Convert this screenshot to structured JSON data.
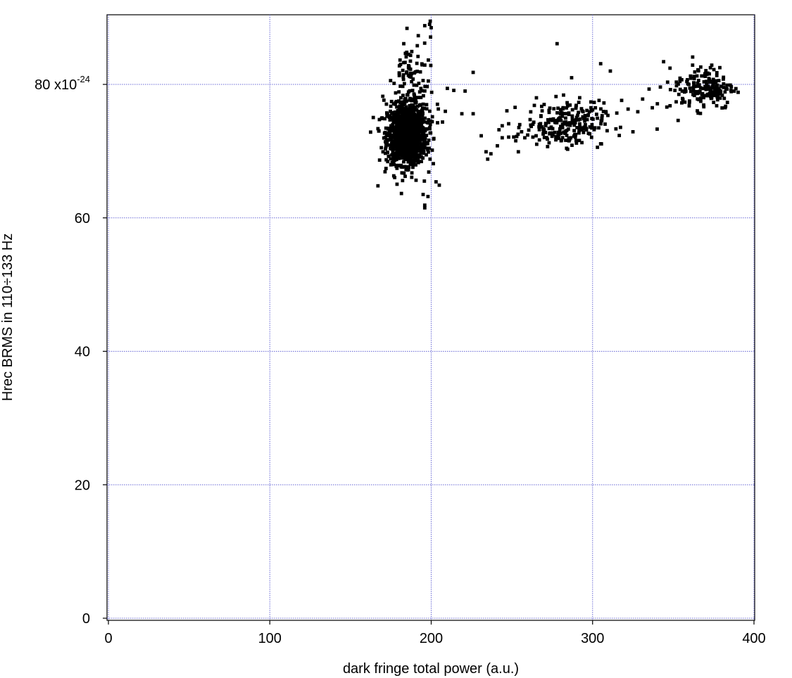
{
  "chart_data": {
    "type": "scatter",
    "xlabel": "dark fringe total power (a.u.)",
    "ylabel": "Hrec BRMS in 110÷133 Hz",
    "xlim": [
      0,
      400
    ],
    "ylim": [
      0,
      90
    ],
    "x_ticks": [
      0,
      100,
      200,
      300,
      400
    ],
    "y_ticks": [
      0,
      20,
      40,
      60,
      80
    ],
    "x_tick_labels": [
      "0",
      "100",
      "200",
      "300",
      "400"
    ],
    "y_tick_labels": [
      "0",
      "20",
      "40",
      "60",
      "80 x10"
    ],
    "y_multiplier_exponent": "-24",
    "grid": true,
    "grid_color": "#6b6bd6",
    "marker_color": "#000000",
    "marker": "square",
    "clusters": [
      {
        "x_mean": 185,
        "x_sd": 6,
        "y_mean": 72.5,
        "y_sd": 2.2,
        "n": 1200
      },
      {
        "x_mean": 188,
        "x_sd": 7,
        "y_mean": 78,
        "y_sd": 5,
        "n": 160
      },
      {
        "x_mean": 283,
        "x_sd": 12,
        "y_mean": 74,
        "y_sd": 1.6,
        "n": 220
      },
      {
        "x_mean": 370,
        "x_sd": 9,
        "y_mean": 79.5,
        "y_sd": 1.6,
        "n": 170
      }
    ],
    "points": [
      [
        167,
        64.8
      ],
      [
        172,
        67.4
      ],
      [
        195,
        63.5
      ],
      [
        198,
        63.2
      ],
      [
        196,
        61.9
      ],
      [
        196,
        61.5
      ],
      [
        203,
        65.4
      ],
      [
        205,
        64.9
      ],
      [
        196,
        88.8
      ],
      [
        199,
        89.0
      ],
      [
        200,
        88.5
      ],
      [
        185,
        88.4
      ],
      [
        192,
        87.3
      ],
      [
        183,
        86.1
      ],
      [
        210,
        79.4
      ],
      [
        214,
        79.1
      ],
      [
        221,
        79.0
      ],
      [
        226,
        81.8
      ],
      [
        219,
        75.6
      ],
      [
        226,
        75.6
      ],
      [
        231,
        72.3
      ],
      [
        234,
        69.9
      ],
      [
        235,
        68.8
      ],
      [
        237,
        69.6
      ],
      [
        241,
        70.8
      ],
      [
        242,
        73.2
      ],
      [
        244,
        73.8
      ],
      [
        244,
        72.0
      ],
      [
        248,
        74.1
      ],
      [
        248,
        72.1
      ],
      [
        253,
        72.2
      ],
      [
        254,
        69.9
      ],
      [
        256,
        72.9
      ],
      [
        258,
        72.0
      ],
      [
        262,
        73.7
      ],
      [
        265,
        72.3
      ],
      [
        267,
        74.0
      ],
      [
        270,
        73.2
      ],
      [
        272,
        71.8
      ],
      [
        275,
        74.6
      ],
      [
        278,
        86.1
      ],
      [
        287,
        81.0
      ],
      [
        292,
        78.0
      ],
      [
        301,
        77.3
      ],
      [
        304,
        77.6
      ],
      [
        305,
        83.1
      ],
      [
        305,
        71.1
      ],
      [
        311,
        82.0
      ],
      [
        315,
        75.7
      ],
      [
        318,
        77.6
      ],
      [
        322,
        76.3
      ],
      [
        325,
        72.9
      ],
      [
        328,
        75.9
      ],
      [
        331,
        77.8
      ],
      [
        335,
        79.3
      ],
      [
        337,
        76.5
      ],
      [
        340,
        73.3
      ],
      [
        342,
        79.6
      ],
      [
        344,
        83.4
      ],
      [
        348,
        76.8
      ],
      [
        351,
        79.1
      ],
      [
        353,
        74.6
      ],
      [
        356,
        77.7
      ],
      [
        359,
        80.1
      ],
      [
        362,
        84.1
      ],
      [
        367,
        82.6
      ],
      [
        373,
        82.5
      ],
      [
        375,
        77.3
      ],
      [
        378,
        79.2
      ],
      [
        381,
        80.8
      ],
      [
        346,
        76.6
      ],
      [
        352,
        79.8
      ],
      [
        263,
        72.1
      ],
      [
        279,
        71.9
      ],
      [
        285,
        71.6
      ],
      [
        289,
        72.5
      ],
      [
        296,
        73.4
      ],
      [
        298,
        75.9
      ],
      [
        286,
        76.9
      ],
      [
        282,
        78.4
      ],
      [
        273,
        76.1
      ],
      [
        268,
        75.3
      ],
      [
        290,
        71.2
      ],
      [
        299,
        76.5
      ]
    ]
  }
}
